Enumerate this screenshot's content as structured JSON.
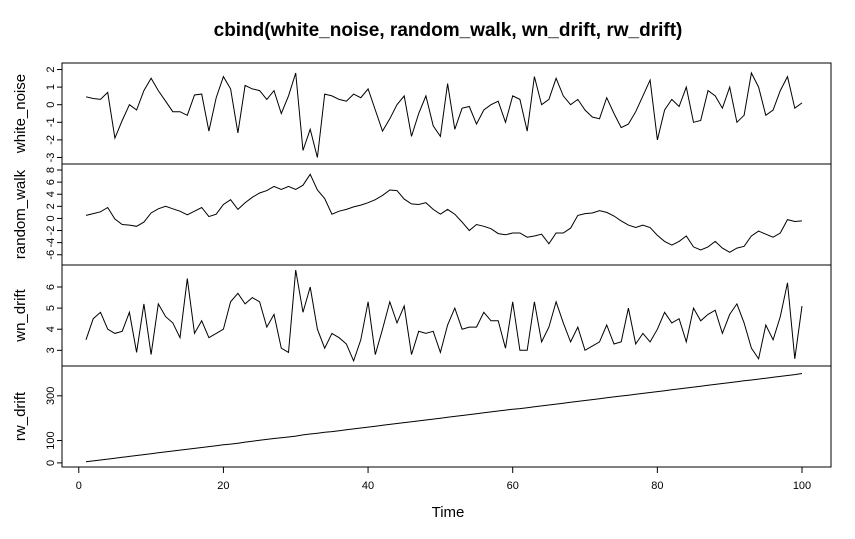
{
  "chart_data": {
    "type": "line",
    "title": "cbind(white_noise, random_walk, wn_drift, rw_drift)",
    "xlabel": "Time",
    "xlim": [
      1,
      100
    ],
    "x_ticks": [
      0,
      20,
      40,
      60,
      80,
      100
    ],
    "x": [
      1,
      2,
      3,
      4,
      5,
      6,
      7,
      8,
      9,
      10,
      11,
      12,
      13,
      14,
      15,
      16,
      17,
      18,
      19,
      20,
      21,
      22,
      23,
      24,
      25,
      26,
      27,
      28,
      29,
      30,
      31,
      32,
      33,
      34,
      35,
      36,
      37,
      38,
      39,
      40,
      41,
      42,
      43,
      44,
      45,
      46,
      47,
      48,
      49,
      50,
      51,
      52,
      53,
      54,
      55,
      56,
      57,
      58,
      59,
      60,
      61,
      62,
      63,
      64,
      65,
      66,
      67,
      68,
      69,
      70,
      71,
      72,
      73,
      74,
      75,
      76,
      77,
      78,
      79,
      80,
      81,
      82,
      83,
      84,
      85,
      86,
      87,
      88,
      89,
      90,
      91,
      92,
      93,
      94,
      95,
      96,
      97,
      98,
      99,
      100
    ],
    "series": [
      {
        "name": "white_noise",
        "ylim": [
          -3.2,
          2.2
        ],
        "y_ticks": [
          -3,
          -2,
          -1,
          0,
          1,
          2
        ],
        "y_tick_labels": [
          "-3",
          "-2",
          "-1",
          "0",
          "1",
          "2"
        ],
        "values": [
          0.45,
          0.35,
          0.3,
          0.7,
          -1.9,
          -0.9,
          0.0,
          -0.3,
          0.8,
          1.5,
          0.8,
          0.2,
          -0.4,
          -0.4,
          -0.6,
          0.55,
          0.6,
          -1.5,
          0.4,
          1.6,
          0.9,
          -1.6,
          1.1,
          0.9,
          0.8,
          0.3,
          0.8,
          -0.5,
          0.5,
          1.8,
          -2.6,
          -1.4,
          -3.0,
          0.6,
          0.5,
          0.3,
          0.2,
          0.6,
          0.4,
          0.9,
          -0.3,
          -1.5,
          -0.8,
          0.0,
          0.5,
          -1.8,
          -0.5,
          0.5,
          -1.2,
          -1.8,
          1.2,
          -1.4,
          -0.2,
          -0.1,
          -1.1,
          -0.3,
          0.0,
          0.2,
          -1.0,
          0.5,
          0.3,
          -1.5,
          1.6,
          0.0,
          0.3,
          1.5,
          0.5,
          0.0,
          0.3,
          -0.3,
          -0.7,
          -0.8,
          0.4,
          -0.5,
          -1.3,
          -1.1,
          -0.4,
          0.5,
          1.4,
          -2.0,
          -0.3,
          0.3,
          -0.1,
          1.0,
          -1.0,
          -0.9,
          0.8,
          0.5,
          -0.2,
          1.0,
          -1.0,
          -0.6,
          1.8,
          1.0,
          -0.6,
          -0.3,
          0.8,
          1.6,
          -0.2,
          0.1
        ]
      },
      {
        "name": "random_walk",
        "ylim": [
          -7.2,
          8.5
        ],
        "y_ticks": [
          -6,
          -4,
          -2,
          0,
          2,
          4,
          6,
          8
        ],
        "y_tick_labels": [
          "-6",
          "-4",
          "-2",
          "0",
          "2",
          "4",
          "6",
          "8"
        ],
        "values": [
          0.5,
          0.8,
          1.1,
          1.8,
          -0.1,
          -1.0,
          -1.1,
          -1.3,
          -0.6,
          0.9,
          1.6,
          2.0,
          1.6,
          1.2,
          0.6,
          1.2,
          1.8,
          0.3,
          0.7,
          2.3,
          3.1,
          1.5,
          2.6,
          3.5,
          4.2,
          4.6,
          5.3,
          4.8,
          5.3,
          4.8,
          5.5,
          7.3,
          4.7,
          3.3,
          0.7,
          1.2,
          1.5,
          1.9,
          2.2,
          2.6,
          3.1,
          3.8,
          4.7,
          4.6,
          3.2,
          2.4,
          2.3,
          2.6,
          1.5,
          0.7,
          1.5,
          0.7,
          -0.6,
          -2.0,
          -1.0,
          -1.3,
          -1.7,
          -2.5,
          -2.7,
          -2.4,
          -2.4,
          -3.1,
          -2.9,
          -2.6,
          -4.2,
          -2.4,
          -2.4,
          -1.6,
          0.5,
          0.8,
          0.9,
          1.3,
          1.0,
          0.4,
          -0.4,
          -1.1,
          -1.5,
          -1.1,
          -1.5,
          -2.8,
          -3.8,
          -4.4,
          -3.8,
          -2.9,
          -4.7,
          -5.2,
          -4.7,
          -3.8,
          -4.9,
          -5.6,
          -4.9,
          -4.6,
          -2.9,
          -2.1,
          -2.6,
          -3.1,
          -2.4,
          -0.2,
          -0.5,
          -0.4
        ]
      },
      {
        "name": "wn_drift",
        "ylim": [
          2.4,
          6.9
        ],
        "y_ticks": [
          3,
          4,
          5,
          6
        ],
        "y_tick_labels": [
          "3",
          "4",
          "5",
          "6"
        ],
        "values": [
          3.5,
          4.5,
          4.8,
          4.0,
          3.8,
          3.9,
          4.8,
          2.9,
          5.2,
          2.8,
          5.2,
          4.6,
          4.3,
          3.6,
          6.4,
          3.8,
          4.4,
          3.6,
          3.8,
          4.0,
          5.3,
          5.7,
          5.2,
          5.5,
          5.3,
          4.1,
          4.7,
          3.1,
          2.9,
          6.8,
          4.8,
          6.0,
          4.0,
          3.1,
          3.8,
          3.6,
          3.3,
          2.5,
          3.5,
          5.3,
          2.8,
          4.0,
          5.3,
          4.3,
          5.1,
          2.8,
          3.9,
          3.8,
          3.9,
          2.9,
          4.2,
          5.0,
          4.0,
          4.1,
          4.1,
          4.8,
          4.4,
          4.4,
          3.1,
          5.3,
          3.0,
          3.0,
          5.3,
          3.4,
          4.1,
          5.3,
          4.3,
          3.4,
          4.1,
          3.0,
          3.2,
          3.4,
          4.2,
          3.3,
          3.4,
          5.0,
          3.3,
          3.8,
          3.4,
          4.0,
          4.8,
          4.3,
          4.5,
          3.4,
          5.0,
          4.4,
          4.7,
          4.9,
          3.8,
          4.7,
          5.2,
          4.3,
          3.1,
          2.6,
          4.2,
          3.5,
          4.6,
          6.2,
          2.6,
          5.1
        ]
      },
      {
        "name": "rw_drift",
        "ylim": [
          -5,
          420
        ],
        "y_ticks": [
          0,
          100,
          300
        ],
        "y_tick_labels": [
          "0",
          "100",
          "300"
        ],
        "values": [
          5,
          9,
          13,
          17,
          21,
          25,
          29,
          33,
          37,
          41,
          45,
          49,
          53,
          57,
          61,
          65,
          69,
          73,
          77,
          81,
          84,
          88,
          93,
          97,
          101,
          105,
          109,
          112,
          116,
          120,
          125,
          129,
          133,
          137,
          140,
          144,
          148,
          152,
          156,
          160,
          164,
          168,
          172,
          176,
          180,
          184,
          188,
          192,
          196,
          200,
          204,
          208,
          212,
          216,
          220,
          224,
          228,
          232,
          236,
          240,
          243,
          247,
          251,
          255,
          259,
          263,
          267,
          271,
          275,
          279,
          283,
          287,
          291,
          295,
          299,
          303,
          307,
          311,
          315,
          319,
          323,
          327,
          331,
          335,
          339,
          343,
          347,
          351,
          355,
          359,
          363,
          367,
          371,
          375,
          379,
          383,
          387,
          391,
          395,
          400
        ]
      }
    ]
  }
}
